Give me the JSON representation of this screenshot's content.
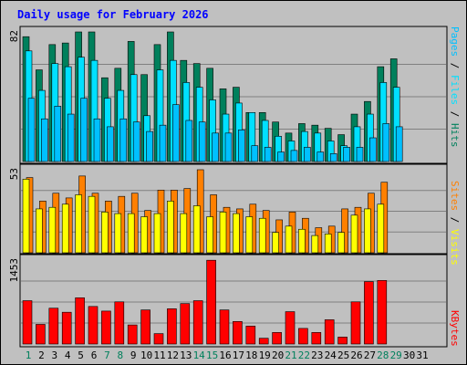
{
  "title": "Daily usage for February 2026",
  "colors": {
    "hits": "#00805c",
    "files": "#00e0ff",
    "pages": "#00c0ff",
    "visits": "#ffff00",
    "sites": "#ff8000",
    "kbytes": "#ff0000",
    "weekday": "#000000",
    "weekend": "#00805c",
    "panel_bg": "#c0c0c0",
    "grid": "#808080",
    "title": "#0000ff"
  },
  "panels": {
    "top": {
      "scale_label": "82",
      "legend": [
        {
          "text": "Pages",
          "sep": " / ",
          "color_key": "pages"
        },
        {
          "text": "Files",
          "sep": " / ",
          "color_key": "files"
        },
        {
          "text": "Hits",
          "sep": "",
          "color_key": "hits"
        }
      ]
    },
    "middle": {
      "scale_label": "53",
      "legend": [
        {
          "text": "Sites",
          "sep": " / ",
          "color_key": "sites"
        },
        {
          "text": "Visits",
          "sep": "",
          "color_key": "visits"
        }
      ]
    },
    "bottom": {
      "scale_label": "1453",
      "legend": [
        {
          "text": "KBytes",
          "sep": "",
          "color_key": "kbytes"
        }
      ]
    }
  },
  "chart_data": {
    "type": "bar",
    "title": "Daily usage for February 2026",
    "categories": [
      "1",
      "2",
      "3",
      "4",
      "5",
      "6",
      "7",
      "8",
      "9",
      "10",
      "11",
      "12",
      "13",
      "14",
      "15",
      "16",
      "17",
      "18",
      "19",
      "20",
      "21",
      "22",
      "23",
      "24",
      "25",
      "26",
      "27",
      "28",
      "29",
      "30",
      "31"
    ],
    "weekend_days": [
      "1",
      "7",
      "8",
      "14",
      "15",
      "21",
      "22",
      "28",
      "29"
    ],
    "hits_files_pages": {
      "ymax": 82,
      "series": [
        {
          "name": "Hits",
          "values": [
            79,
            58,
            74,
            75,
            82,
            82,
            53,
            59,
            76,
            55,
            74,
            82,
            64,
            62,
            59,
            46,
            47,
            31,
            31,
            25,
            18,
            24,
            23,
            21,
            17,
            30,
            38,
            60,
            65,
            0,
            0
          ]
        },
        {
          "name": "Files",
          "values": [
            70,
            45,
            62,
            60,
            66,
            64,
            40,
            45,
            55,
            29,
            58,
            64,
            50,
            47,
            39,
            30,
            37,
            31,
            26,
            16,
            13,
            19,
            18,
            13,
            10,
            22,
            30,
            50,
            47,
            0,
            0
          ]
        },
        {
          "name": "Pages",
          "values": [
            40,
            27,
            35,
            30,
            40,
            27,
            22,
            27,
            25,
            19,
            23,
            36,
            26,
            25,
            18,
            18,
            20,
            10,
            9,
            6,
            7,
            9,
            6,
            5,
            9,
            9,
            15,
            24,
            22,
            0,
            0
          ]
        }
      ]
    },
    "visits_sites": {
      "ymax": 53,
      "series": [
        {
          "name": "Sites",
          "values": [
            48,
            33,
            38,
            35,
            49,
            38,
            33,
            36,
            38,
            27,
            40,
            40,
            41,
            53,
            37,
            29,
            28,
            31,
            27,
            21,
            26,
            22,
            16,
            17,
            28,
            29,
            38,
            45,
            0,
            0,
            0
          ]
        },
        {
          "name": "Visits",
          "values": [
            47,
            28,
            29,
            31,
            37,
            36,
            26,
            25,
            25,
            23,
            25,
            33,
            25,
            30,
            23,
            26,
            25,
            23,
            22,
            13,
            17,
            15,
            11,
            12,
            13,
            24,
            28,
            31,
            0,
            0,
            0
          ]
        }
      ]
    },
    "kbytes": {
      "ymax": 1453,
      "series": [
        {
          "name": "KBytes",
          "values": [
            750,
            340,
            620,
            550,
            800,
            650,
            570,
            730,
            330,
            590,
            180,
            610,
            700,
            750,
            1450,
            590,
            390,
            310,
            100,
            200,
            560,
            270,
            200,
            420,
            120,
            730,
            1080,
            1100,
            0,
            0,
            0
          ]
        }
      ]
    }
  }
}
